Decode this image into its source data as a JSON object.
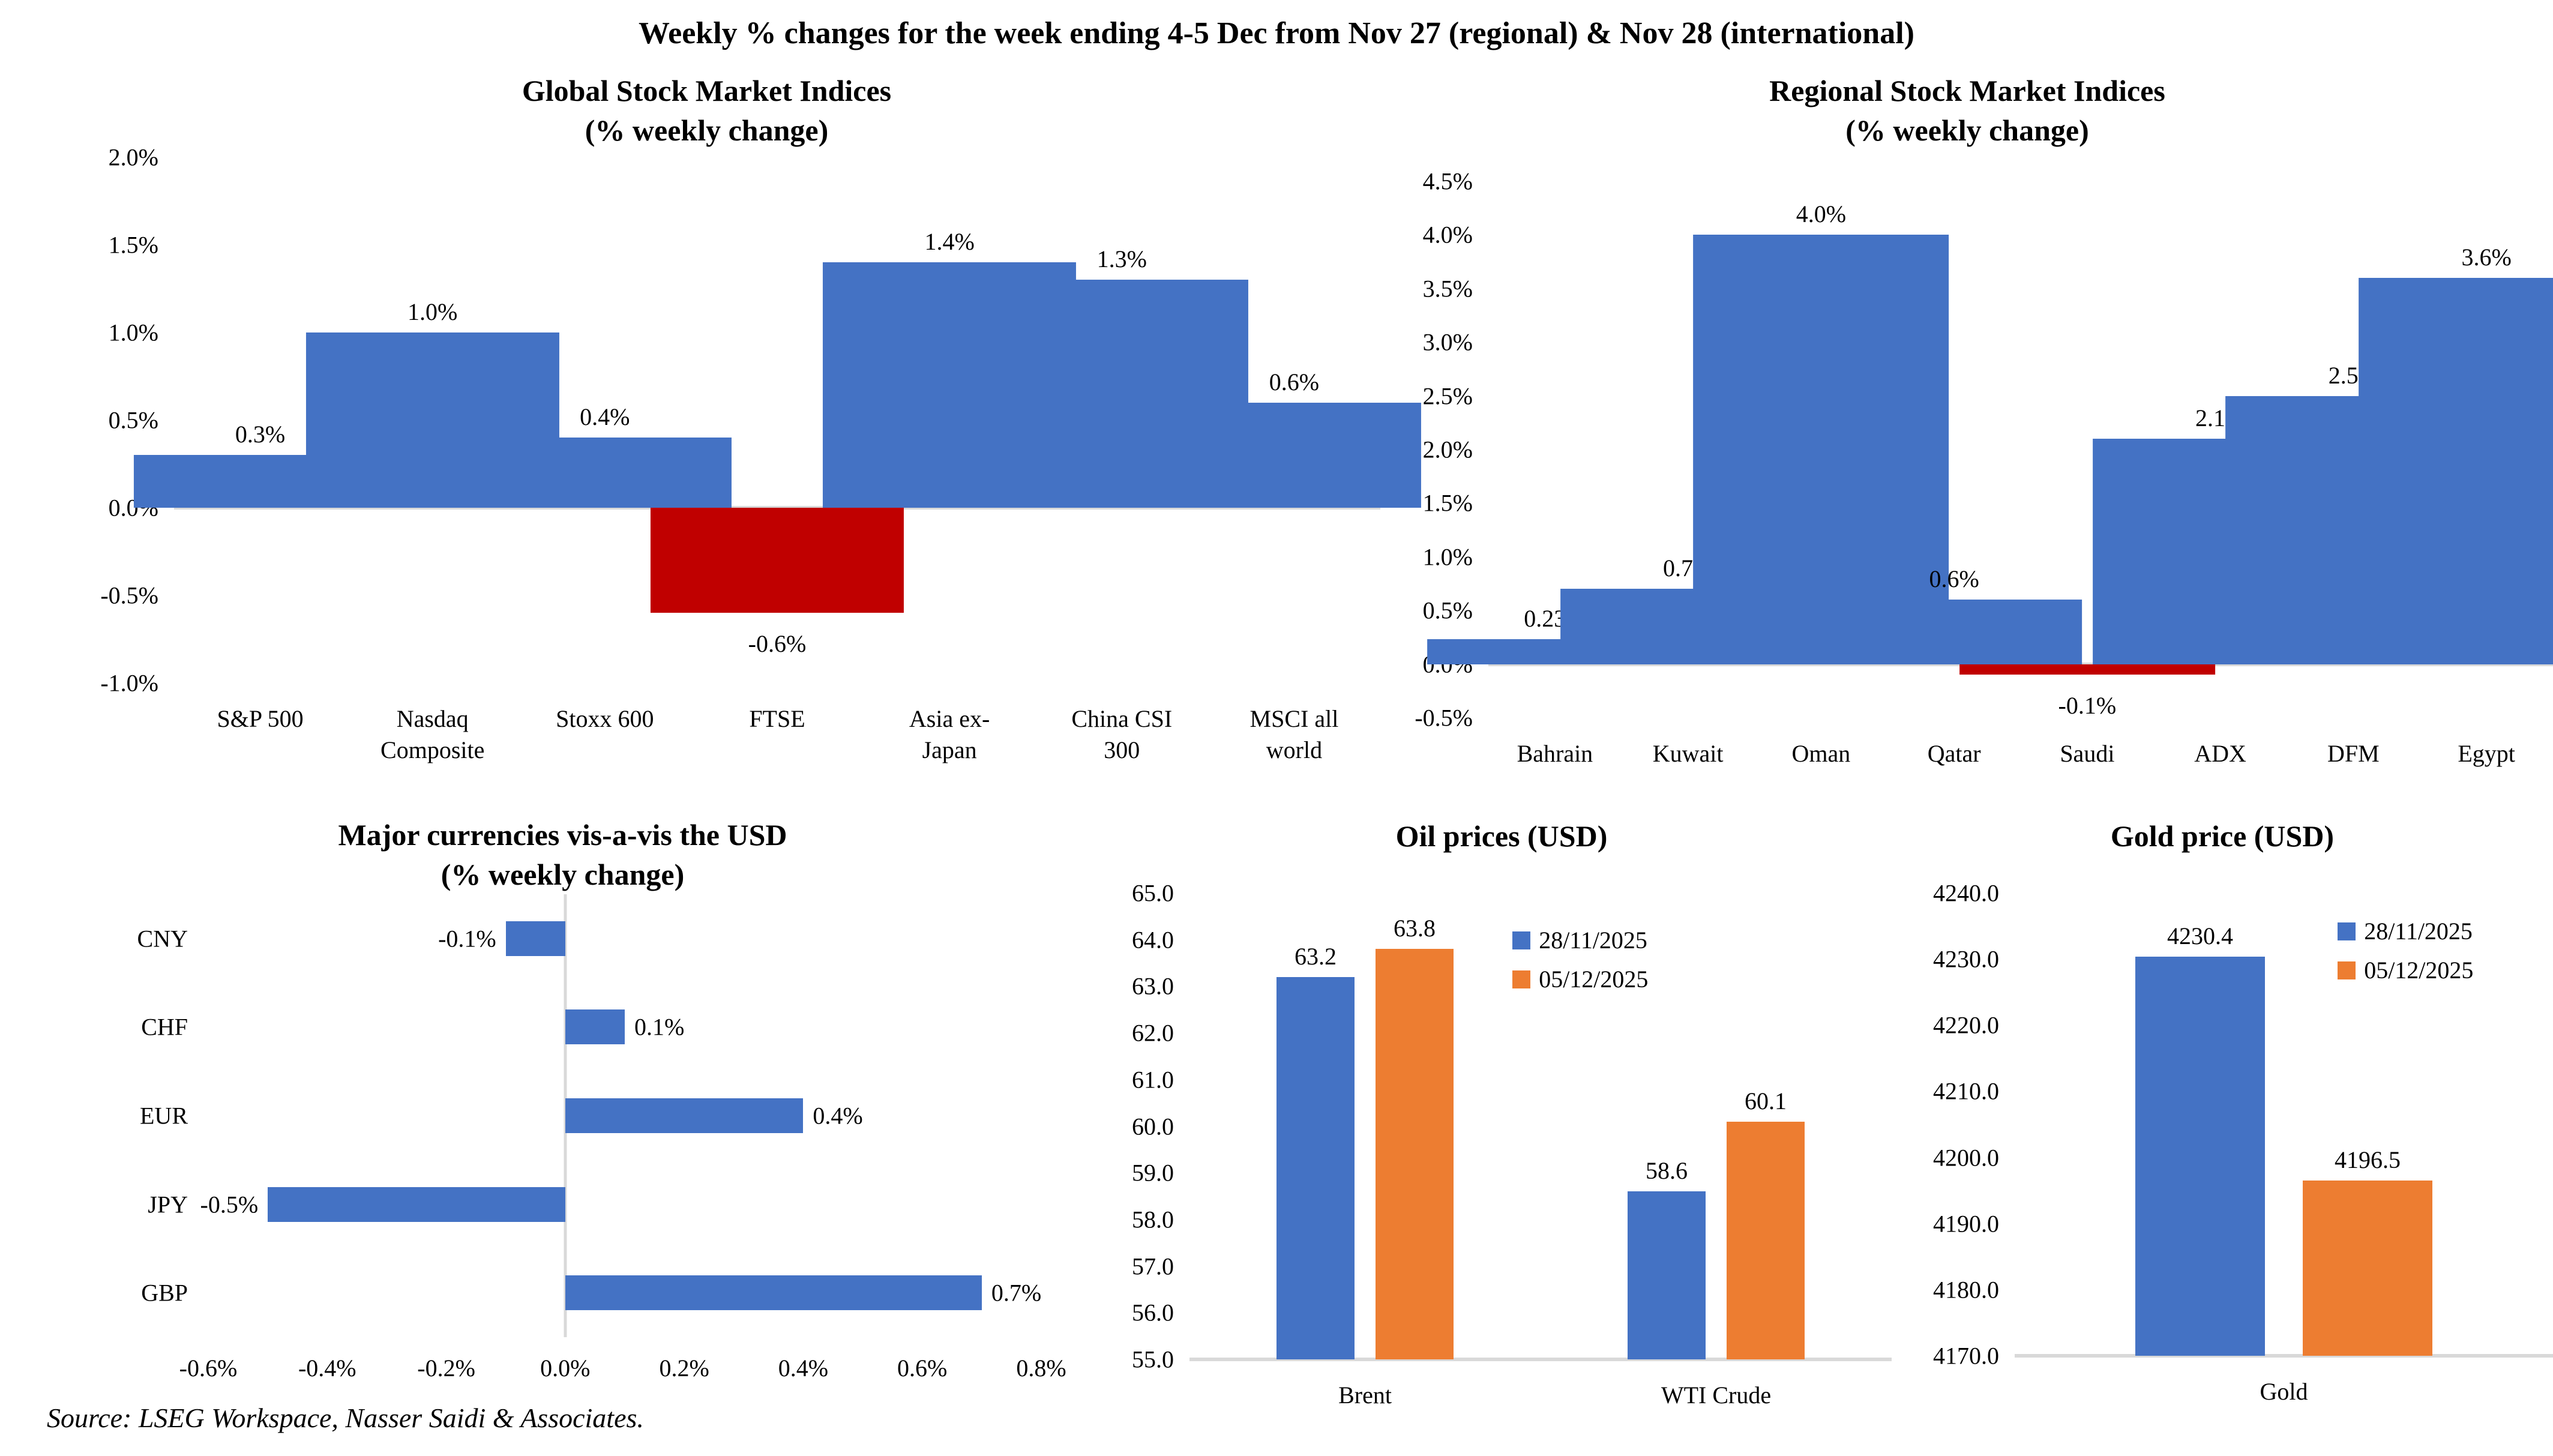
{
  "page": {
    "title": "Weekly % changes for the week ending 4-5 Dec from Nov 27 (regional) & Nov 28 (international)",
    "source": "Source: LSEG Workspace, Nasser Saidi & Associates."
  },
  "colors": {
    "blue": "#4472C4",
    "red": "#C00000",
    "orange": "#ED7D31",
    "axis": "#D9D9D9"
  },
  "chart_data": [
    {
      "id": "global",
      "type": "bar",
      "title": "Global Stock Market Indices",
      "subtitle": "(% weekly change)",
      "categories": [
        "S&P 500",
        "Nasdaq\nComposite",
        "Stoxx 600",
        "FTSE",
        "Asia ex-\nJapan",
        "China CSI\n300",
        "MSCI all\nworld"
      ],
      "values": [
        0.3,
        1.0,
        0.4,
        -0.6,
        1.4,
        1.3,
        0.6
      ],
      "labels": [
        "0.3%",
        "1.0%",
        "0.4%",
        "-0.6%",
        "1.4%",
        "1.3%",
        "0.6%"
      ],
      "bar_colors": [
        "blue",
        "blue",
        "blue",
        "red",
        "blue",
        "blue",
        "blue"
      ],
      "ylim": [
        -1.0,
        2.0
      ],
      "yticks": [
        "2.0%",
        "1.5%",
        "1.0%",
        "0.5%",
        "0.0%",
        "-0.5%",
        "-1.0%"
      ],
      "ytick_values": [
        2.0,
        1.5,
        1.0,
        0.5,
        0.0,
        -0.5,
        -1.0
      ],
      "grid": false
    },
    {
      "id": "regional",
      "type": "bar",
      "title": "Regional Stock Market Indices",
      "subtitle": "(% weekly change)",
      "categories": [
        "Bahrain",
        "Kuwait",
        "Oman",
        "Qatar",
        "Saudi",
        "ADX",
        "DFM",
        "Egypt"
      ],
      "values": [
        0.23,
        0.7,
        4.0,
        0.6,
        -0.1,
        2.1,
        2.5,
        3.6
      ],
      "labels": [
        "0.23%",
        "0.7%",
        "4.0%",
        "0.6%",
        "-0.1%",
        "2.1%",
        "2.5%",
        "3.6%"
      ],
      "bar_colors": [
        "blue",
        "blue",
        "blue",
        "blue",
        "red",
        "blue",
        "blue",
        "blue"
      ],
      "ylim": [
        -0.5,
        4.5
      ],
      "yticks": [
        "4.5%",
        "4.0%",
        "3.5%",
        "3.0%",
        "2.5%",
        "2.0%",
        "1.5%",
        "1.0%",
        "0.5%",
        "0.0%",
        "-0.5%"
      ],
      "ytick_values": [
        4.5,
        4.0,
        3.5,
        3.0,
        2.5,
        2.0,
        1.5,
        1.0,
        0.5,
        0.0,
        -0.5
      ],
      "grid": false
    },
    {
      "id": "currencies",
      "type": "hbar",
      "title": "Major currencies vis-a-vis the USD",
      "subtitle": "(% weekly change)",
      "categories": [
        "CNY",
        "CHF",
        "EUR",
        "JPY",
        "GBP"
      ],
      "values": [
        -0.1,
        0.1,
        0.4,
        -0.5,
        0.7
      ],
      "labels": [
        "-0.1%",
        "0.1%",
        "0.4%",
        "-0.5%",
        "0.7%"
      ],
      "bar_colors": [
        "blue",
        "blue",
        "blue",
        "blue",
        "blue"
      ],
      "xlim": [
        -0.6,
        0.8
      ],
      "xticks": [
        "-0.6%",
        "-0.4%",
        "-0.2%",
        "0.0%",
        "0.2%",
        "0.4%",
        "0.6%",
        "0.8%"
      ],
      "xtick_values": [
        -0.6,
        -0.4,
        -0.2,
        0.0,
        0.2,
        0.4,
        0.6,
        0.8
      ],
      "grid": false
    },
    {
      "id": "oil",
      "type": "grouped-bar",
      "title": "Oil prices (USD)",
      "categories": [
        "Brent",
        "WTI Crude"
      ],
      "series": [
        {
          "name": "28/11/2025",
          "color": "blue",
          "values": [
            63.2,
            58.6
          ],
          "labels": [
            "63.2",
            "58.6"
          ]
        },
        {
          "name": "05/12/2025",
          "color": "orange",
          "values": [
            63.8,
            60.1
          ],
          "labels": [
            "63.8",
            "60.1"
          ]
        }
      ],
      "ylim": [
        55.0,
        65.0
      ],
      "yticks": [
        "65.0",
        "64.0",
        "63.0",
        "62.0",
        "61.0",
        "60.0",
        "59.0",
        "58.0",
        "57.0",
        "56.0",
        "55.0"
      ],
      "ytick_values": [
        65,
        64,
        63,
        62,
        61,
        60,
        59,
        58,
        57,
        56,
        55
      ],
      "legend_position": "top-right-inside",
      "grid": false
    },
    {
      "id": "gold",
      "type": "grouped-bar",
      "title": "Gold price (USD)",
      "categories": [
        "Gold"
      ],
      "series": [
        {
          "name": "28/11/2025",
          "color": "blue",
          "values": [
            4230.4
          ],
          "labels": [
            "4230.4"
          ]
        },
        {
          "name": "05/12/2025",
          "color": "orange",
          "values": [
            4196.5
          ],
          "labels": [
            "4196.5"
          ]
        }
      ],
      "ylim": [
        4170.0,
        4240.0
      ],
      "yticks": [
        "4240.0",
        "4230.0",
        "4220.0",
        "4210.0",
        "4200.0",
        "4190.0",
        "4180.0",
        "4170.0"
      ],
      "ytick_values": [
        4240,
        4230,
        4220,
        4210,
        4200,
        4190,
        4180,
        4170
      ],
      "legend_position": "top-right-inside",
      "grid": false
    }
  ]
}
